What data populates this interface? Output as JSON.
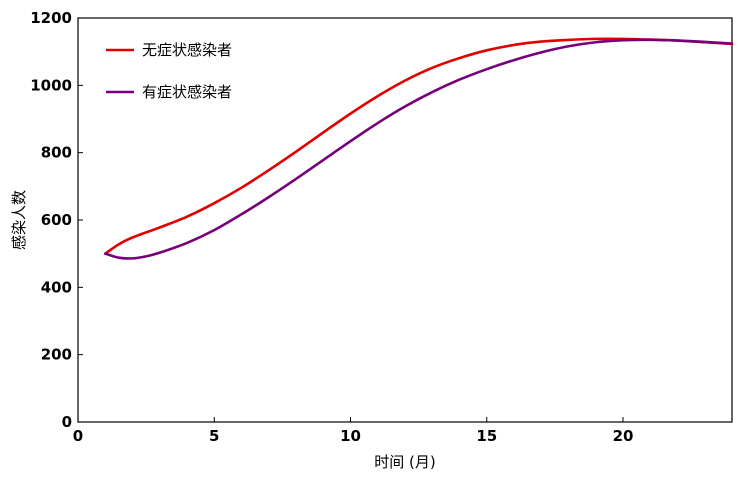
{
  "chart_data": {
    "type": "line",
    "xlabel": "时间 (月)",
    "ylabel": "感染人数",
    "xlim": [
      0,
      24
    ],
    "ylim": [
      0,
      1200
    ],
    "xticks": [
      0,
      5,
      10,
      15,
      20
    ],
    "yticks": [
      0,
      200,
      400,
      600,
      800,
      1000,
      1200
    ],
    "grid": false,
    "legend_position": "upper-left",
    "series": [
      {
        "name": "无症状感染者",
        "color": "#e00000",
        "x": [
          1,
          1.5,
          2,
          3,
          4,
          5,
          6,
          7,
          8,
          9,
          10,
          11,
          12,
          13,
          14,
          15,
          16,
          17,
          18,
          19,
          20,
          21,
          22,
          23,
          24
        ],
        "y": [
          500,
          528,
          548,
          578,
          610,
          650,
          696,
          748,
          803,
          860,
          916,
          968,
          1014,
          1052,
          1081,
          1104,
          1120,
          1130,
          1135,
          1138,
          1138,
          1136,
          1133,
          1128,
          1123
        ]
      },
      {
        "name": "有症状感染者",
        "color": "#76007a",
        "x": [
          1,
          1.5,
          2,
          2.5,
          3,
          4,
          5,
          6,
          7,
          8,
          9,
          10,
          11,
          12,
          13,
          14,
          15,
          16,
          17,
          18,
          19,
          20,
          21,
          22,
          23,
          24
        ],
        "y": [
          500,
          488,
          486,
          492,
          503,
          532,
          570,
          617,
          668,
          722,
          778,
          834,
          888,
          937,
          980,
          1017,
          1048,
          1075,
          1098,
          1116,
          1128,
          1134,
          1135,
          1133,
          1129,
          1124
        ]
      }
    ]
  }
}
